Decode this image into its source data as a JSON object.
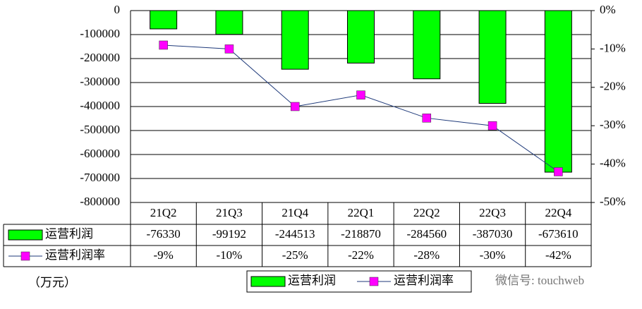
{
  "chart_data": {
    "type": "bar",
    "categories": [
      "21Q2",
      "21Q3",
      "21Q4",
      "22Q1",
      "22Q2",
      "22Q3",
      "22Q4"
    ],
    "series": [
      {
        "name": "运营利润",
        "type": "bar",
        "color": "#00ff00",
        "values": [
          -76330,
          -99192,
          -244513,
          -218870,
          -284560,
          -387030,
          -673610
        ]
      },
      {
        "name": "运营利润率",
        "type": "line",
        "axis": "y2",
        "color": "#1f3a7a",
        "marker_color": "#ff00ff",
        "values": [
          -9,
          -10,
          -25,
          -22,
          -28,
          -30,
          -42
        ],
        "value_labels": [
          "-9%",
          "-10%",
          "-25%",
          "-22%",
          "-28%",
          "-30%",
          "-42%"
        ]
      }
    ],
    "ylim": [
      0,
      -800000
    ],
    "yticks": [
      0,
      -100000,
      -200000,
      -300000,
      -400000,
      -500000,
      -600000,
      -700000,
      -800000
    ],
    "y2lim": [
      0,
      -50
    ],
    "y2ticks": [
      {
        "value": 0,
        "label": "0%"
      },
      {
        "value": -10,
        "label": "-10%"
      },
      {
        "value": -20,
        "label": "-20%"
      },
      {
        "value": -30,
        "label": "-30%"
      },
      {
        "value": -40,
        "label": "-40%"
      },
      {
        "value": -50,
        "label": "-50%"
      }
    ],
    "grid": true,
    "unit_label": "（万元）",
    "watermark": "微信号: touchweb"
  }
}
